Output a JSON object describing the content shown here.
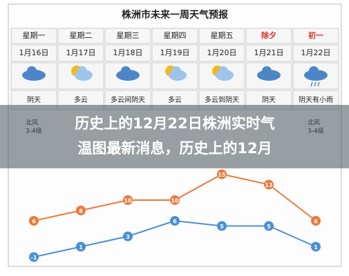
{
  "header": {
    "title": "株洲市未来一周天气预报"
  },
  "days": [
    {
      "name": "星期一",
      "date": "1月16日",
      "weather": "阴天",
      "wind": "北风",
      "level": "3-4级"
    },
    {
      "name": "星期二",
      "date": "1月17日",
      "weather": "多云"
    },
    {
      "name": "星期三",
      "date": "1月18日",
      "weather": "多云间阴天"
    },
    {
      "name": "星期四",
      "date": "1月19日",
      "weather": "多云"
    },
    {
      "name": "星期五",
      "date": "1月20日",
      "weather": "多云到阴天"
    },
    {
      "name": "除夕",
      "date": "1月21日",
      "weather": "阴天",
      "holiday": true
    },
    {
      "name": "初一",
      "date": "1月22日",
      "weather": "阴天有小雨",
      "holiday": true,
      "wind": "北风",
      "level": "3-4级"
    }
  ],
  "overlay": {
    "lines": [
      "历史上的12月22日株洲实时气",
      "温图最新消息，历史上的12月"
    ]
  },
  "temperature": {
    "series": [
      {
        "color": "#ea7a3c",
        "values": [
          6,
          8,
          10,
          10,
          15,
          13,
          6
        ]
      },
      {
        "color": "#4a8fd6",
        "values": [
          -1,
          1,
          3,
          6,
          5,
          5,
          1
        ]
      }
    ]
  }
}
